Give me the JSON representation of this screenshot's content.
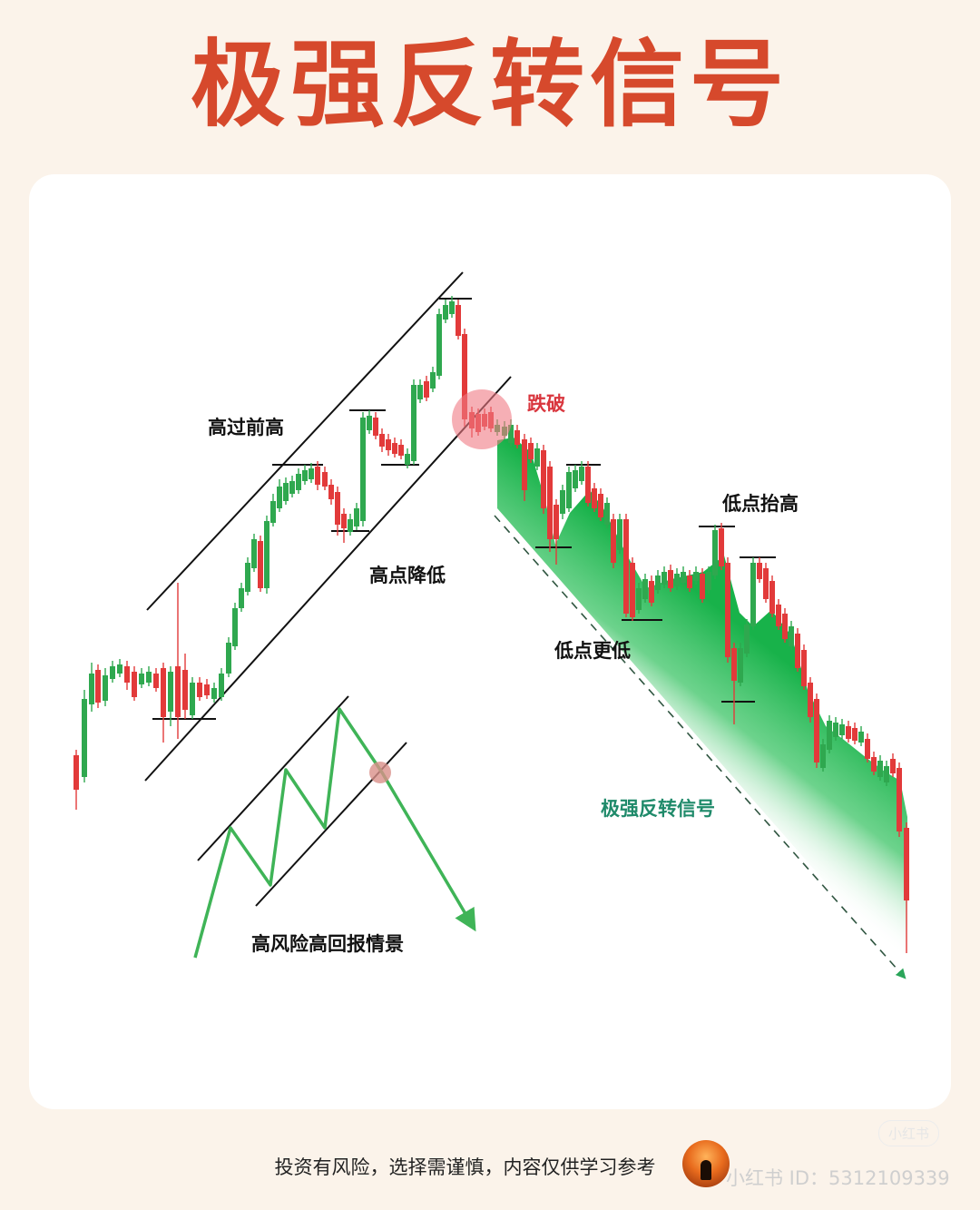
{
  "title": "极强反转信号",
  "labels": {
    "higher_high": "高过前高",
    "lower_high": "高点降低",
    "breakdown": "跌破",
    "higher_low": "低点抬高",
    "lower_low": "低点更低",
    "signal": "极强反转信号",
    "scenario": "高风险高回报情景"
  },
  "footer": {
    "disclaimer": "投资有风险，选择需谨慎，内容仅供学习参考",
    "watermark": "小红书 ID：5312109339",
    "watermark_logo": "小红书"
  },
  "colors": {
    "title": "#d6492c",
    "bull_candle": "#2fa84f",
    "bear_candle": "#e23a3a",
    "breakdown_label": "#d9363e",
    "signal_label": "#1f8a6a",
    "zigzag": "#3fb457",
    "highlight": "#f07a84"
  }
}
